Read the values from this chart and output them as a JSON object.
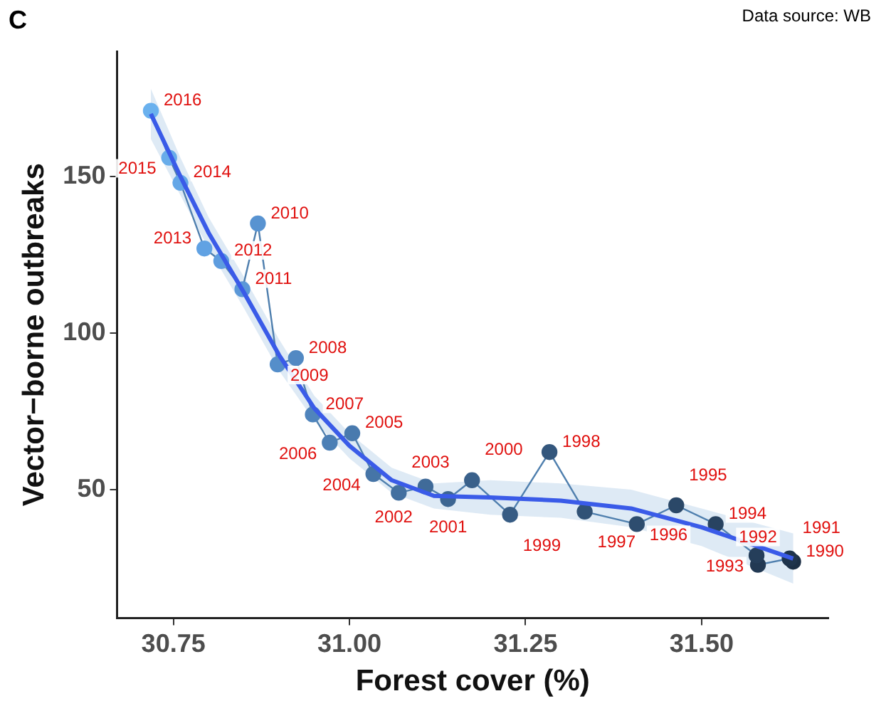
{
  "chart_data": {
    "type": "line",
    "xlabel": "Forest cover (%)",
    "ylabel": "Vector−borne outbreaks",
    "xlim": [
      30.67,
      31.68
    ],
    "xticks": [
      {
        "value": 30.75,
        "label": "30.75"
      },
      {
        "value": 31,
        "label": "31.00"
      },
      {
        "value": 31.25,
        "label": "31.25"
      },
      {
        "value": 31.5,
        "label": "31.50"
      }
    ],
    "ylim": [
      9,
      190
    ],
    "yticks": [
      50,
      100,
      150
    ],
    "grid": false,
    "legend": false,
    "series": [
      {
        "marker": "circle",
        "color": "#4f7fae",
        "x": [
          31.63,
          31.625,
          31.58,
          31.578,
          31.52,
          31.464,
          31.408,
          31.334,
          31.284,
          31.228,
          31.174,
          31.14,
          31.108,
          31.07,
          31.034,
          31.004,
          30.972,
          30.948,
          30.924,
          30.898,
          30.87,
          30.848,
          30.818,
          30.794,
          30.76,
          30.744,
          30.718
        ],
        "values": [
          27,
          28,
          26,
          29,
          39,
          45,
          39,
          43,
          62,
          42,
          53,
          47,
          51,
          49,
          55,
          68,
          65,
          74,
          92,
          90,
          135,
          114,
          123,
          127,
          148,
          156,
          171
        ],
        "colors": [
          "#1c2f45",
          "#1f344c",
          "#223953",
          "#253e5a",
          "#284361",
          "#2b4868",
          "#2e4d6f",
          "#315276",
          "#34577d",
          "#375c84",
          "#3a618b",
          "#3d6692",
          "#406b99",
          "#4370a0",
          "#4675a7",
          "#497aae",
          "#4c7fb5",
          "#4f84bc",
          "#5289c3",
          "#558eca",
          "#5893d1",
          "#5b98d8",
          "#5e9ddf",
          "#61a2e3",
          "#64a7e7",
          "#67acea",
          "#6ab1ee"
        ]
      },
      {
        "marker": "none",
        "color": "#3a5be8",
        "x": [
          30.718,
          30.76,
          30.8,
          30.85,
          30.9,
          30.95,
          31.0,
          31.06,
          31.12,
          31.2,
          31.3,
          31.4,
          31.5,
          31.63
        ],
        "values": [
          170,
          150,
          132,
          113,
          93,
          76,
          64,
          53,
          48,
          47.5,
          46.5,
          44,
          38,
          28
        ],
        "lower": [
          162,
          144,
          127,
          108,
          88,
          72,
          60,
          49,
          44,
          42,
          41,
          38,
          32,
          20
        ],
        "upper": [
          178,
          156,
          137,
          118,
          98,
          80,
          68,
          57,
          52,
          53,
          52,
          50,
          44,
          36
        ]
      }
    ],
    "annotations": [
      "C",
      "Data source: WB",
      {
        "text": "1990",
        "x": 31.63,
        "y": 27
      },
      {
        "text": "1991",
        "x": 31.625,
        "y": 28
      },
      {
        "text": "1992",
        "x": 31.58,
        "y": 26
      },
      {
        "text": "1993",
        "x": 31.578,
        "y": 29
      },
      {
        "text": "1994",
        "x": 31.52,
        "y": 39
      },
      {
        "text": "1995",
        "x": 31.464,
        "y": 45
      },
      {
        "text": "1996",
        "x": 31.408,
        "y": 39
      },
      {
        "text": "1997",
        "x": 31.334,
        "y": 43
      },
      {
        "text": "1998",
        "x": 31.284,
        "y": 62
      },
      {
        "text": "1999",
        "x": 31.228,
        "y": 42
      },
      {
        "text": "2000",
        "x": 31.174,
        "y": 53
      },
      {
        "text": "2001",
        "x": 31.14,
        "y": 47
      },
      {
        "text": "2002",
        "x": 31.108,
        "y": 51
      },
      {
        "text": "2003",
        "x": 31.07,
        "y": 49
      },
      {
        "text": "2004",
        "x": 31.034,
        "y": 55
      },
      {
        "text": "2005",
        "x": 31.004,
        "y": 68
      },
      {
        "text": "2006",
        "x": 30.972,
        "y": 65
      },
      {
        "text": "2007",
        "x": 30.948,
        "y": 74
      },
      {
        "text": "2008",
        "x": 30.924,
        "y": 92
      },
      {
        "text": "2009",
        "x": 30.898,
        "y": 90
      },
      {
        "text": "2010",
        "x": 30.87,
        "y": 135
      },
      {
        "text": "2011",
        "x": 30.848,
        "y": 114
      },
      {
        "text": "2012",
        "x": 30.818,
        "y": 123
      },
      {
        "text": "2013",
        "x": 30.794,
        "y": 127
      },
      {
        "text": "2014",
        "x": 30.76,
        "y": 148
      },
      {
        "text": "2015",
        "x": 30.744,
        "y": 156
      },
      {
        "text": "2016",
        "x": 30.718,
        "y": 171
      }
    ]
  }
}
